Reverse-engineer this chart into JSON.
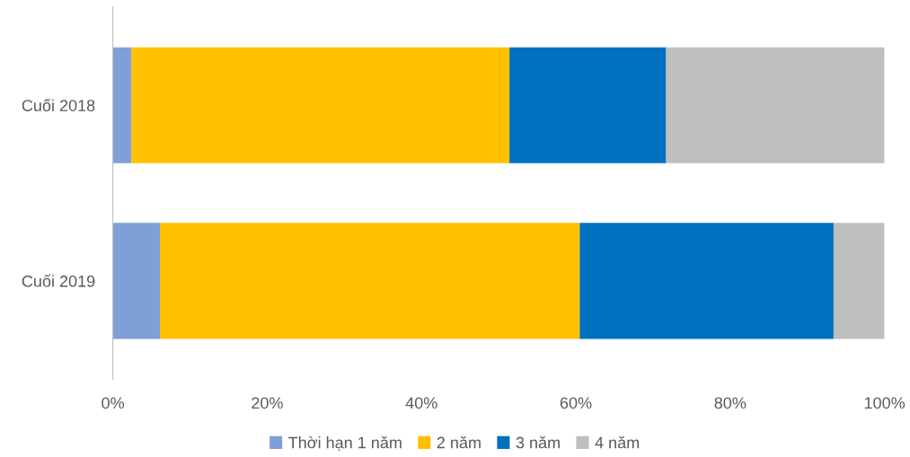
{
  "chart_data": {
    "type": "bar",
    "orientation": "horizontal",
    "stacked": true,
    "categories": [
      "Cuối 2018",
      "Cuối 2019"
    ],
    "series": [
      {
        "name": "Thời hạn 1 năm",
        "color": "#7f9fd7",
        "values": [
          2.4,
          6.1
        ]
      },
      {
        "name": "2 năm",
        "color": "#ffc000",
        "values": [
          49.0,
          54.4
        ]
      },
      {
        "name": "3 năm",
        "color": "#0070c0",
        "values": [
          20.3,
          32.9
        ]
      },
      {
        "name": "4 năm",
        "color": "#bfbfbf",
        "values": [
          28.3,
          6.6
        ]
      }
    ],
    "xlim": [
      0,
      100
    ],
    "xticks": [
      {
        "value": 0,
        "label": "0%"
      },
      {
        "value": 20,
        "label": "20%"
      },
      {
        "value": 40,
        "label": "40%"
      },
      {
        "value": 60,
        "label": "60%"
      },
      {
        "value": 80,
        "label": "80%"
      },
      {
        "value": 100,
        "label": "100%"
      }
    ],
    "grid": false,
    "legend": "bottom"
  }
}
